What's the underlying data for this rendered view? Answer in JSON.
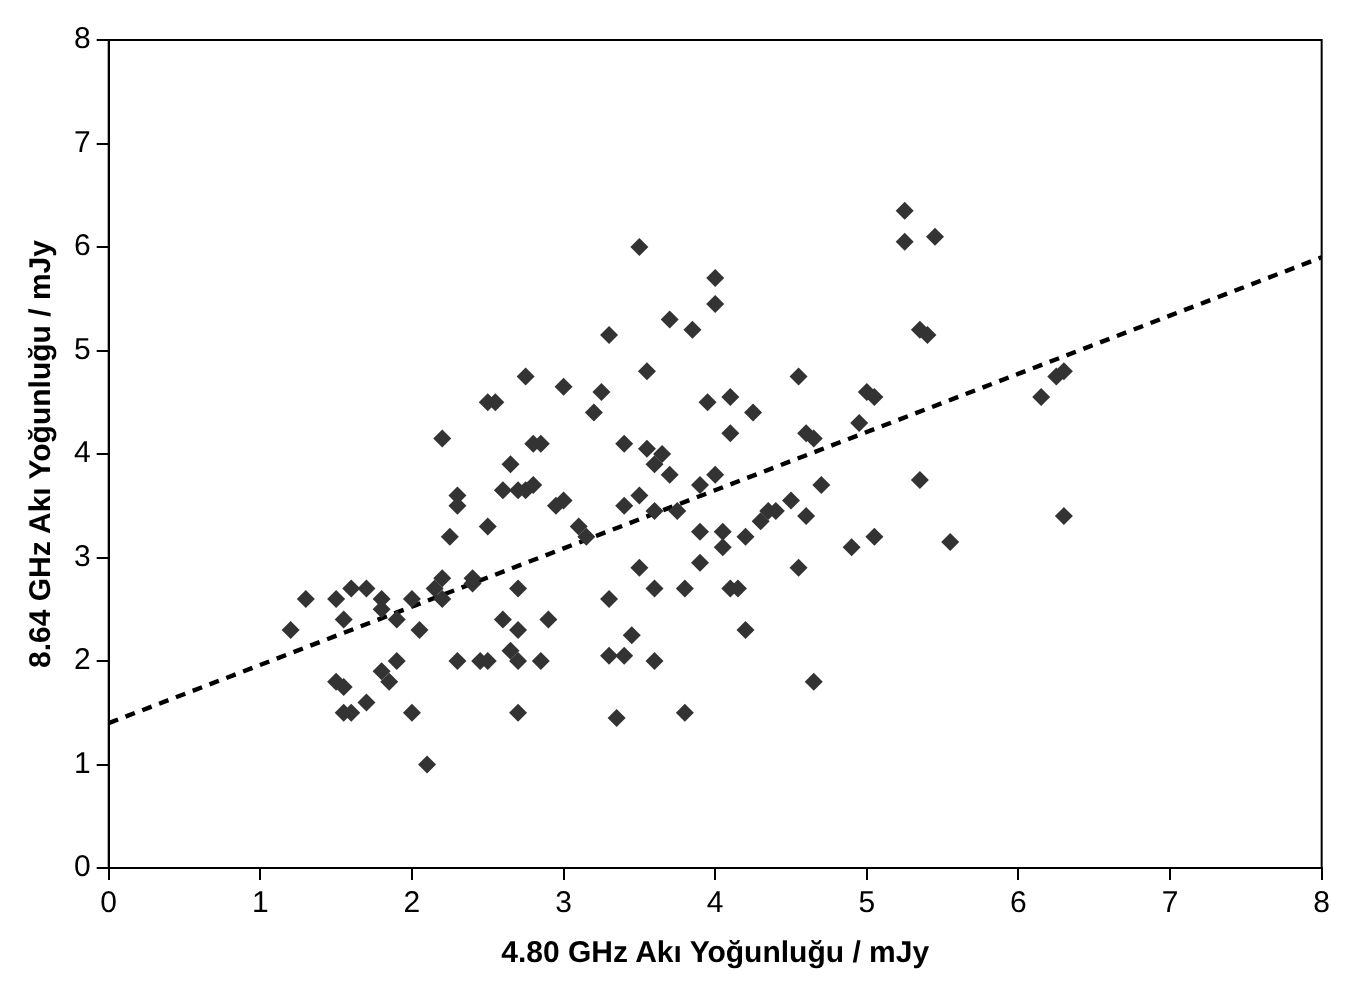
{
  "chart_data": {
    "type": "scatter",
    "xlabel": "4.80 GHz Akı Yoğunluğu / mJy",
    "ylabel": "8.64 GHz Akı Yoğunluğu / mJy",
    "xlim": [
      0,
      8
    ],
    "ylim": [
      0,
      8
    ],
    "xticks": [
      0,
      1,
      2,
      3,
      4,
      5,
      6,
      7,
      8
    ],
    "yticks": [
      0,
      1,
      2,
      3,
      4,
      5,
      6,
      7,
      8
    ],
    "grid": false,
    "legend": false,
    "marker": "diamond",
    "series": [
      {
        "color": "#333333",
        "x": [
          1.2,
          1.3,
          1.5,
          1.55,
          1.6,
          1.7,
          1.5,
          1.55,
          1.6,
          1.55,
          1.7,
          1.8,
          1.8,
          1.8,
          1.85,
          1.9,
          1.9,
          2.0,
          2.0,
          2.05,
          2.1,
          2.15,
          2.2,
          2.2,
          2.2,
          2.25,
          2.3,
          2.3,
          2.3,
          2.4,
          2.4,
          2.45,
          2.5,
          2.5,
          2.5,
          2.55,
          2.6,
          2.65,
          2.6,
          2.65,
          2.7,
          2.7,
          2.7,
          2.75,
          2.75,
          2.8,
          2.8,
          2.85,
          2.85,
          2.9,
          2.7,
          2.7,
          2.95,
          3.0,
          3.0,
          3.1,
          3.15,
          3.2,
          3.25,
          3.3,
          3.3,
          3.3,
          3.35,
          3.4,
          3.4,
          3.4,
          3.5,
          3.5,
          3.45,
          3.5,
          3.55,
          3.55,
          3.6,
          3.6,
          3.6,
          3.6,
          3.65,
          3.7,
          3.7,
          3.75,
          3.8,
          3.8,
          3.85,
          3.9,
          3.9,
          3.9,
          3.95,
          4.0,
          4.0,
          4.0,
          4.05,
          4.05,
          4.1,
          4.1,
          4.1,
          4.15,
          4.2,
          4.2,
          4.25,
          4.3,
          4.35,
          4.4,
          4.5,
          4.6,
          4.55,
          4.55,
          4.6,
          4.65,
          4.65,
          4.7,
          4.9,
          4.95,
          5.0,
          5.05,
          5.05,
          5.25,
          5.25,
          5.35,
          5.4,
          5.45,
          5.35,
          5.55,
          6.15,
          6.25,
          6.3,
          6.3
        ],
        "values": [
          2.3,
          2.6,
          2.6,
          2.4,
          2.7,
          2.7,
          1.8,
          1.75,
          1.5,
          1.5,
          1.6,
          2.5,
          2.6,
          1.9,
          1.8,
          2.0,
          2.4,
          2.6,
          1.5,
          2.3,
          1.0,
          2.7,
          2.8,
          2.6,
          4.15,
          3.2,
          3.6,
          3.5,
          2.0,
          2.75,
          2.8,
          2.0,
          2.0,
          3.3,
          4.5,
          4.5,
          3.65,
          3.9,
          2.4,
          2.1,
          2.3,
          1.5,
          3.65,
          3.65,
          4.75,
          4.1,
          3.7,
          4.1,
          2.0,
          2.4,
          2.0,
          2.7,
          3.5,
          3.55,
          4.65,
          3.3,
          3.2,
          4.4,
          4.6,
          5.15,
          2.6,
          2.05,
          1.45,
          2.05,
          3.5,
          4.1,
          6.0,
          2.9,
          2.25,
          3.6,
          4.8,
          4.05,
          3.9,
          3.45,
          2.7,
          2.0,
          4.0,
          5.3,
          3.8,
          3.45,
          2.7,
          1.5,
          5.2,
          3.25,
          3.7,
          2.95,
          4.5,
          5.7,
          5.45,
          3.8,
          3.25,
          3.1,
          4.55,
          4.2,
          2.7,
          2.7,
          2.3,
          3.2,
          4.4,
          3.35,
          3.45,
          3.45,
          3.55,
          3.4,
          2.9,
          4.75,
          4.2,
          4.15,
          1.8,
          3.7,
          3.1,
          4.3,
          4.6,
          4.55,
          3.2,
          6.35,
          6.05,
          5.2,
          5.15,
          6.1,
          3.75,
          3.15,
          4.55,
          4.75,
          4.8,
          3.4
        ]
      },
      {
        "type": "line",
        "color": "#000000",
        "line_style": "dashed",
        "marker": "none",
        "x": [
          0,
          8
        ],
        "values": [
          1.4,
          5.9
        ]
      }
    ]
  }
}
